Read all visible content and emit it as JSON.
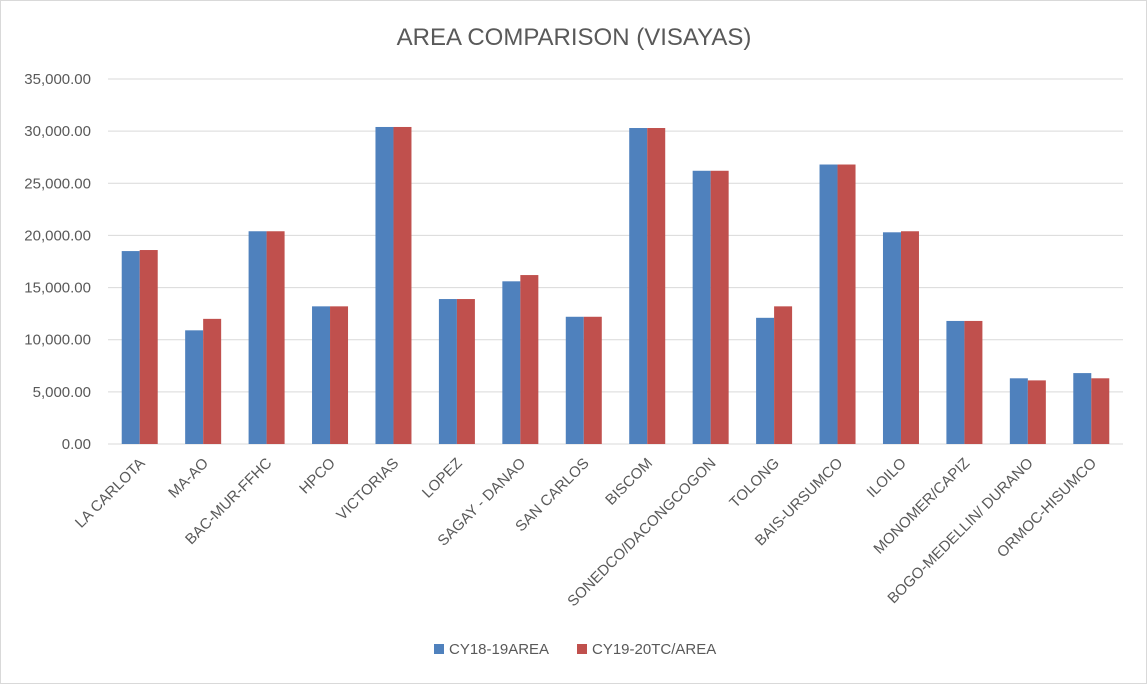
{
  "chart_data": {
    "type": "bar",
    "title": "AREA COMPARISON (VISAYAS)",
    "xlabel": "",
    "ylabel": "",
    "ylim": [
      0,
      35000
    ],
    "yticks": [
      0,
      5000,
      10000,
      15000,
      20000,
      25000,
      30000,
      35000
    ],
    "ytick_labels": [
      "0.00",
      "5,000.00",
      "10,000.00",
      "15,000.00",
      "20,000.00",
      "25,000.00",
      "30,000.00",
      "35,000.00"
    ],
    "grid": true,
    "legend_position": "bottom",
    "categories": [
      "LA CARLOTA",
      "MA-AO",
      "BAC-MUR-FFHC",
      "HPCO",
      "VICTORIAS",
      "LOPEZ",
      "SAGAY - DANAO",
      "SAN CARLOS",
      "BISCOM",
      "SONEDCO/DACONGCOGON",
      "TOLONG",
      "BAIS-URSUMCO",
      "ILOILO",
      "MONOMER/CAPIZ",
      "BOGO-MEDELLIN/ DURANO",
      "ORMOC-HISUMCO"
    ],
    "series": [
      {
        "name": "CY18-19AREA",
        "color": "#4f81bd",
        "values": [
          18500,
          10900,
          20400,
          13200,
          30400,
          13900,
          15600,
          12200,
          30300,
          26200,
          12100,
          26800,
          20300,
          11800,
          6300,
          6800
        ]
      },
      {
        "name": "CY19-20TC/AREA",
        "color": "#c0504d",
        "values": [
          18600,
          12000,
          20400,
          13200,
          30400,
          13900,
          16200,
          12200,
          30300,
          26200,
          13200,
          26800,
          20400,
          11800,
          6100,
          6300
        ]
      }
    ]
  }
}
